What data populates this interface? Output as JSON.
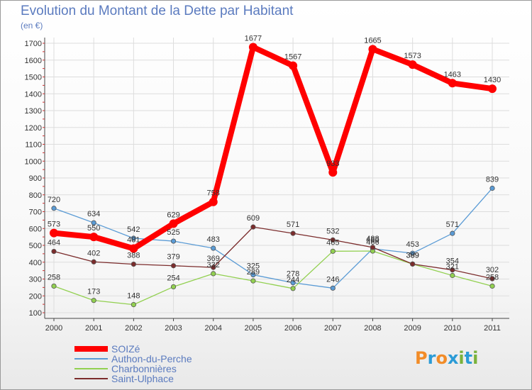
{
  "header": {
    "title": "Evolution du Montant de la Dette par Habitant",
    "subtitle": "(en €)"
  },
  "logo": {
    "text": "Proxiti",
    "colors": [
      "#f28c28",
      "#2b9bd6",
      "#f28c28",
      "#2b9bd6",
      "#7ab23c",
      "#2b9bd6",
      "#7ab23c"
    ]
  },
  "chart_data": {
    "type": "line",
    "x": [
      "2000",
      "2001",
      "2002",
      "2003",
      "2004",
      "2005",
      "2006",
      "2007",
      "2008",
      "2009",
      "2010",
      "2011"
    ],
    "ylim": [
      100,
      1700
    ],
    "yticks": [
      100,
      200,
      300,
      400,
      500,
      600,
      700,
      800,
      900,
      1000,
      1100,
      1200,
      1300,
      1400,
      1500,
      1600,
      1700
    ],
    "grid": true,
    "legend_position": "bottom-left",
    "series": [
      {
        "name": "SOIZé",
        "color": "#ff0000",
        "values": [
          573,
          550,
          481,
          629,
          758,
          1677,
          1567,
          933,
          1665,
          1573,
          1463,
          1430
        ],
        "labels": [
          "573",
          "550",
          "481",
          "629",
          "758",
          "1677",
          "1567",
          "933",
          "1665",
          "1573",
          "1463",
          "1430"
        ]
      },
      {
        "name": "Authon-du-Perche",
        "color": "#5a9bd5",
        "values": [
          720,
          634,
          542,
          525,
          483,
          325,
          278,
          246,
          480,
          453,
          571,
          839
        ],
        "labels": [
          "720",
          "634",
          "542",
          "525",
          "483",
          "325",
          "278",
          "246",
          "480",
          "453",
          "571",
          "839"
        ]
      },
      {
        "name": "Charbonnières",
        "color": "#92d050",
        "values": [
          258,
          173,
          148,
          254,
          332,
          289,
          244,
          465,
          466,
          389,
          321,
          258
        ],
        "labels": [
          "258",
          "173",
          "148",
          "254",
          "332",
          "289",
          "244",
          "465",
          "466",
          "389",
          "321",
          "258"
        ]
      },
      {
        "name": "Saint-Ulphace",
        "color": "#7b2c2c",
        "values": [
          464,
          402,
          388,
          379,
          369,
          609,
          571,
          532,
          488,
          389,
          354,
          302
        ],
        "labels": [
          "464",
          "402",
          "388",
          "379",
          "369",
          "609",
          "571",
          "532",
          "488",
          "389",
          "354",
          "302"
        ]
      }
    ]
  }
}
